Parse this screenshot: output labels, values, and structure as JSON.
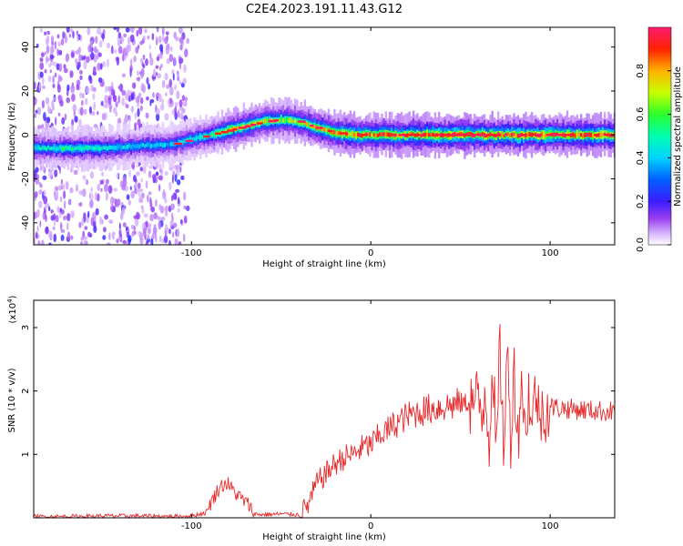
{
  "figure_title": "C2E4.2023.191.11.43.G12",
  "colors": {
    "snr_line": "#e8292c",
    "axes": "#000000"
  },
  "chart_data": [
    {
      "type": "heatmap",
      "title": "C2E4.2023.191.11.43.G12",
      "xlabel": "Height of straight line (km)",
      "ylabel": "Frequency (Hz)",
      "xlim": [
        -188,
        136
      ],
      "ylim": [
        -50,
        49
      ],
      "xticks": [
        -100,
        0,
        100
      ],
      "xtick_labels": [
        "-100",
        "0",
        "100"
      ],
      "yticks": [
        -40,
        -20,
        0,
        20,
        40
      ],
      "ytick_labels": [
        "-40",
        "-20",
        "0",
        "20",
        "40"
      ],
      "colorbar": {
        "label": "Normalized spectral amplitude",
        "range": [
          0,
          1
        ],
        "ticks": [
          0.0,
          0.2,
          0.4,
          0.6,
          0.8
        ],
        "tick_labels": [
          "0.0",
          "0.2",
          "0.4",
          "0.6",
          "0.8"
        ],
        "colormap": "rainbow (violet to red)"
      },
      "ridge": {
        "description": "dominant frequency trace vs height",
        "x": [
          -188,
          -170,
          -150,
          -130,
          -110,
          -100,
          -90,
          -80,
          -70,
          -60,
          -50,
          -40,
          -30,
          -20,
          -10,
          0,
          10,
          30,
          50,
          70,
          90,
          110,
          136
        ],
        "y": [
          -6,
          -6,
          -6,
          -5,
          -4,
          -2,
          0,
          2,
          4,
          6,
          7,
          6,
          3,
          1,
          0,
          0,
          0,
          0,
          0,
          0,
          0,
          0,
          0
        ],
        "amplitude": [
          0.45,
          0.5,
          0.45,
          0.4,
          0.4,
          0.45,
          0.55,
          0.7,
          0.75,
          0.7,
          0.65,
          0.7,
          0.75,
          0.8,
          0.85,
          0.8,
          0.85,
          0.9,
          0.9,
          0.9,
          0.9,
          0.85,
          0.95
        ]
      },
      "noise_region_x": [
        -188,
        -102
      ]
    },
    {
      "type": "line",
      "xlabel": "Height of straight line (km)",
      "ylabel": "SNR (10 * v/v)",
      "y_multiplier_label": "(x10",
      "y_multiplier_exponent": "4",
      "y_multiplier_close": ")",
      "xlim": [
        -188,
        136
      ],
      "ylim": [
        0,
        3.43
      ],
      "xticks": [
        -100,
        0,
        100
      ],
      "xtick_labels": [
        "-100",
        "0",
        "100"
      ],
      "yticks": [
        1,
        2,
        3
      ],
      "ytick_labels": [
        "1",
        "2",
        "3"
      ],
      "series": [
        {
          "x": [
            -188,
            -170,
            -150,
            -130,
            -110,
            -100,
            -92,
            -88,
            -84,
            -80,
            -76,
            -72,
            -68,
            -65,
            -60,
            -50,
            -40,
            -35,
            -30,
            -25,
            -20,
            -15,
            -10,
            -5,
            0,
            5,
            10,
            15,
            20,
            25,
            30,
            40,
            50,
            55,
            60,
            62,
            64,
            66,
            68,
            70,
            72,
            74,
            76,
            78,
            80,
            82,
            84,
            86,
            88,
            90,
            92,
            94,
            96,
            98,
            100,
            110,
            120,
            130,
            136
          ],
          "y": [
            0.02,
            0.02,
            0.03,
            0.03,
            0.02,
            0.03,
            0.08,
            0.3,
            0.5,
            0.55,
            0.4,
            0.3,
            0.2,
            0.06,
            0.05,
            0.06,
            0.05,
            0.2,
            0.55,
            0.7,
            0.85,
            0.95,
            1.0,
            1.1,
            1.15,
            1.3,
            1.4,
            1.5,
            1.6,
            1.65,
            1.7,
            1.75,
            1.8,
            1.82,
            1.85,
            1.6,
            2.1,
            1.2,
            2.5,
            0.9,
            2.7,
            1.1,
            2.6,
            1.3,
            2.4,
            1.2,
            2.3,
            1.3,
            2.0,
            1.4,
            2.1,
            1.5,
            1.8,
            1.7,
            1.75,
            1.72,
            1.7,
            1.68,
            1.68
          ]
        }
      ]
    }
  ]
}
